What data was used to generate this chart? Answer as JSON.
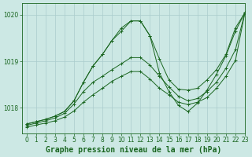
{
  "background_color": "#cce8e4",
  "grid_color": "#aacccc",
  "line_color": "#1a6620",
  "marker_color": "#1a6620",
  "title": "Graphe pression niveau de la mer (hPa)",
  "xlim": [
    -0.5,
    23
  ],
  "ylim": [
    1017.45,
    1020.25
  ],
  "yticks": [
    1018,
    1019,
    1020
  ],
  "xticks": [
    0,
    1,
    2,
    3,
    4,
    5,
    6,
    7,
    8,
    9,
    10,
    11,
    12,
    13,
    14,
    15,
    16,
    17,
    18,
    19,
    20,
    21,
    22,
    23
  ],
  "series": [
    [
      1017.65,
      1017.7,
      1017.75,
      1017.82,
      1017.92,
      1018.15,
      1018.55,
      1018.9,
      1019.15,
      1019.45,
      1019.72,
      1019.87,
      1019.87,
      1019.55,
      1019.05,
      1018.6,
      1018.4,
      1018.38,
      1018.42,
      1018.6,
      1018.82,
      1019.15,
      1019.72,
      1020.05
    ],
    [
      1017.65,
      1017.7,
      1017.75,
      1017.82,
      1017.92,
      1018.15,
      1018.55,
      1018.9,
      1019.15,
      1019.45,
      1019.65,
      1019.87,
      1019.87,
      1019.55,
      1018.75,
      1018.35,
      1018.05,
      1017.92,
      1018.1,
      1018.38,
      1018.72,
      1019.12,
      1019.65,
      1020.05
    ],
    [
      1017.62,
      1017.67,
      1017.72,
      1017.78,
      1017.88,
      1018.08,
      1018.35,
      1018.55,
      1018.68,
      1018.82,
      1018.95,
      1019.08,
      1019.08,
      1018.92,
      1018.68,
      1018.45,
      1018.25,
      1018.15,
      1018.2,
      1018.35,
      1018.55,
      1018.85,
      1019.25,
      1020.05
    ],
    [
      1017.58,
      1017.63,
      1017.67,
      1017.72,
      1017.8,
      1017.93,
      1018.12,
      1018.28,
      1018.42,
      1018.57,
      1018.68,
      1018.78,
      1018.78,
      1018.62,
      1018.42,
      1018.28,
      1018.12,
      1018.07,
      1018.12,
      1018.22,
      1018.42,
      1018.68,
      1019.02,
      1020.05
    ]
  ],
  "title_fontsize": 7,
  "tick_fontsize": 5.5,
  "title_color": "#1a6620",
  "tick_color": "#1a6620",
  "spine_color": "#1a6620"
}
